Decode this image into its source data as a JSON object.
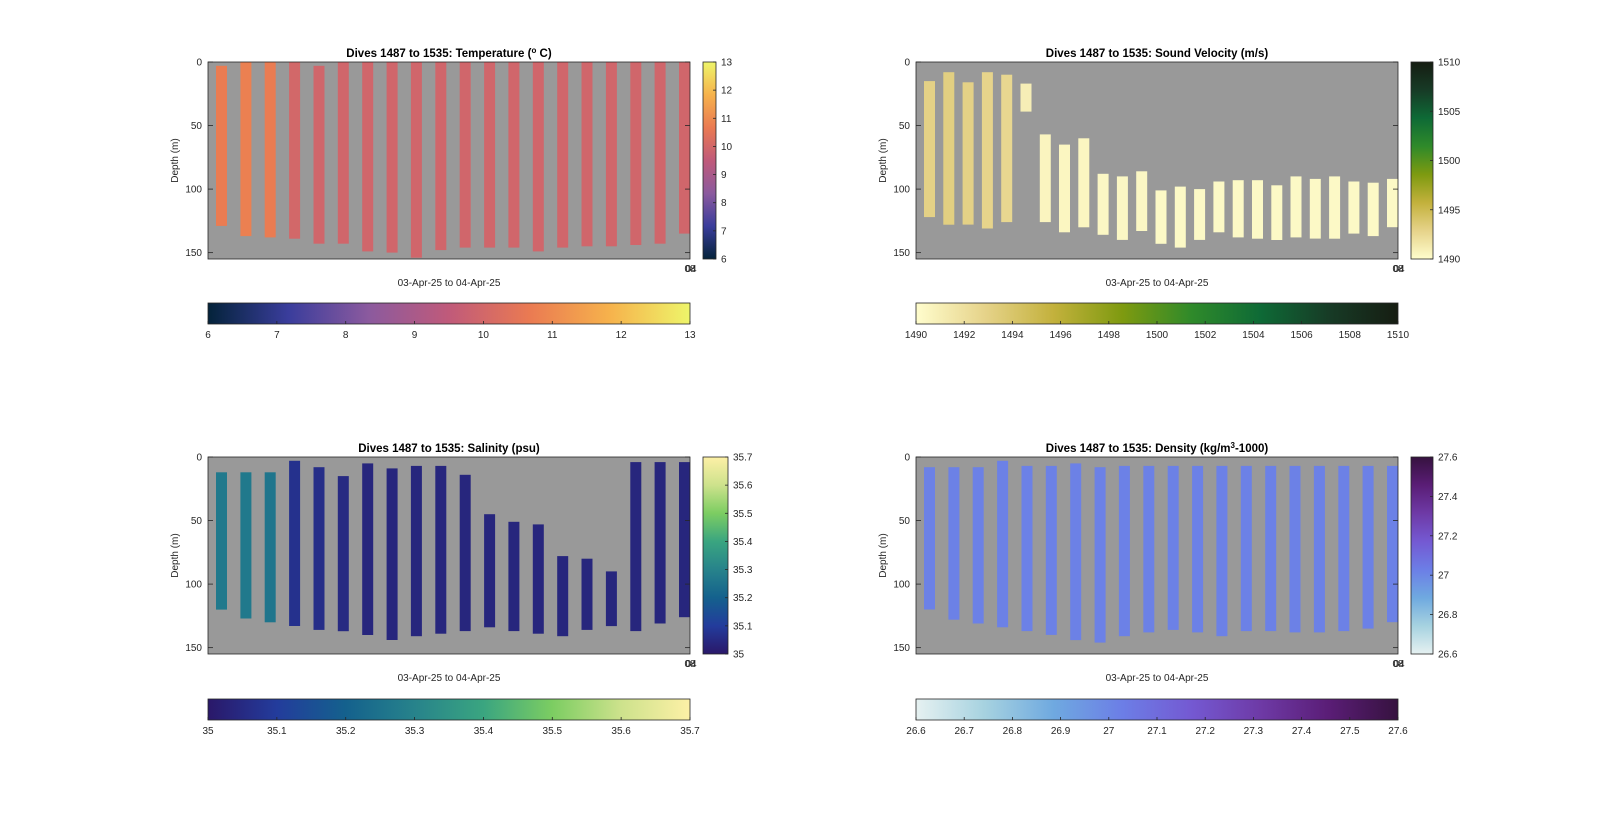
{
  "figure": {
    "background": "#ffffff",
    "axes_background": "#999999"
  },
  "chart_data": [
    {
      "type": "heatmap",
      "title": "Dives 1487 to 1535: Temperature (",
      "title_sup": "o",
      "title_tail": " C)",
      "ylabel": "Depth (m)",
      "xlabel": "03-Apr-25 to 04-Apr-25",
      "ylim": [
        0,
        155
      ],
      "y_inverted": true,
      "yticks": [
        0,
        50,
        100,
        150
      ],
      "xtick_end_label": "08",
      "xtick_end_label_overlap": "04",
      "grid": false,
      "colormap": "thermal",
      "colormap_stops": [
        "#04233a",
        "#3a3d9c",
        "#8b5a9e",
        "#c05a7a",
        "#ea7a52",
        "#f6b24c",
        "#eef56a"
      ],
      "clim": [
        6,
        13
      ],
      "right_colorbar_ticks": [
        6,
        7,
        8,
        9,
        10,
        11,
        12,
        13
      ],
      "bottom_colorbar_ticks": [
        6,
        7,
        8,
        9,
        10,
        11,
        12,
        13
      ],
      "profiles": [
        {
          "top": 3,
          "bottom": 129,
          "value": 10.7
        },
        {
          "top": 0,
          "bottom": 137,
          "value": 10.8
        },
        {
          "top": 0,
          "bottom": 138,
          "value": 10.7
        },
        {
          "top": 0,
          "bottom": 139,
          "value": 10.0
        },
        {
          "top": 3,
          "bottom": 143,
          "value": 9.95
        },
        {
          "top": 0,
          "bottom": 143,
          "value": 9.95
        },
        {
          "top": 0,
          "bottom": 149,
          "value": 9.95
        },
        {
          "top": 0,
          "bottom": 150,
          "value": 9.95
        },
        {
          "top": 0,
          "bottom": 154,
          "value": 9.95
        },
        {
          "top": 0,
          "bottom": 148,
          "value": 9.95
        },
        {
          "top": 0,
          "bottom": 146,
          "value": 9.95
        },
        {
          "top": 0,
          "bottom": 146,
          "value": 9.95
        },
        {
          "top": 0,
          "bottom": 146,
          "value": 9.95
        },
        {
          "top": 0,
          "bottom": 149,
          "value": 9.95
        },
        {
          "top": 0,
          "bottom": 146,
          "value": 9.95
        },
        {
          "top": 0,
          "bottom": 145,
          "value": 9.95
        },
        {
          "top": 0,
          "bottom": 145,
          "value": 9.95
        },
        {
          "top": 0,
          "bottom": 144,
          "value": 9.95
        },
        {
          "top": 0,
          "bottom": 143,
          "value": 9.95
        },
        {
          "top": 0,
          "bottom": 135,
          "value": 9.95
        }
      ]
    },
    {
      "type": "heatmap",
      "title": "Dives 1487 to 1535: Sound Velocity (m/s)",
      "ylabel": "Depth (m)",
      "xlabel": "03-Apr-25 to 04-Apr-25",
      "ylim": [
        0,
        155
      ],
      "y_inverted": true,
      "yticks": [
        0,
        50,
        100,
        150
      ],
      "xtick_end_label": "08",
      "xtick_end_label_overlap": "04",
      "grid": false,
      "colormap": "speed",
      "colormap_stops": [
        "#fffdcd",
        "#e6d38a",
        "#c3b13c",
        "#7e9a10",
        "#2f8a2a",
        "#0e6a36",
        "#173b26",
        "#161d12"
      ],
      "clim": [
        1490,
        1510
      ],
      "right_colorbar_ticks": [
        1490,
        1495,
        1500,
        1505,
        1510
      ],
      "bottom_colorbar_ticks": [
        1490,
        1492,
        1494,
        1496,
        1498,
        1500,
        1502,
        1504,
        1506,
        1508,
        1510
      ],
      "profiles": [
        {
          "top": 15,
          "bottom": 122,
          "value": 1493
        },
        {
          "top": 8,
          "bottom": 128,
          "value": 1493.2
        },
        {
          "top": 16,
          "bottom": 128,
          "value": 1493
        },
        {
          "top": 8,
          "bottom": 131,
          "value": 1492.8
        },
        {
          "top": 10,
          "bottom": 126,
          "value": 1492.6
        },
        {
          "top": 17,
          "bottom": 39,
          "value": 1491
        },
        {
          "top": 57,
          "bottom": 126,
          "value": 1490.6
        },
        {
          "top": 65,
          "bottom": 134,
          "value": 1490.5
        },
        {
          "top": 60,
          "bottom": 130,
          "value": 1490.5
        },
        {
          "top": 88,
          "bottom": 136,
          "value": 1490.4
        },
        {
          "top": 90,
          "bottom": 140,
          "value": 1490.4
        },
        {
          "top": 86,
          "bottom": 133,
          "value": 1490.4
        },
        {
          "top": 101,
          "bottom": 143,
          "value": 1490.3
        },
        {
          "top": 98,
          "bottom": 146,
          "value": 1490.3
        },
        {
          "top": 100,
          "bottom": 140,
          "value": 1490.3
        },
        {
          "top": 94,
          "bottom": 134,
          "value": 1490.3
        },
        {
          "top": 93,
          "bottom": 138,
          "value": 1490.3
        },
        {
          "top": 93,
          "bottom": 139,
          "value": 1490.3
        },
        {
          "top": 97,
          "bottom": 140,
          "value": 1490.3
        },
        {
          "top": 90,
          "bottom": 138,
          "value": 1490.3
        },
        {
          "top": 92,
          "bottom": 139,
          "value": 1490.3
        },
        {
          "top": 90,
          "bottom": 139,
          "value": 1490.3
        },
        {
          "top": 94,
          "bottom": 135,
          "value": 1490.3
        },
        {
          "top": 95,
          "bottom": 137,
          "value": 1490.3
        },
        {
          "top": 92,
          "bottom": 130,
          "value": 1490.3
        }
      ]
    },
    {
      "type": "heatmap",
      "title": "Dives 1487 to 1535: Salinity (psu)",
      "ylabel": "Depth (m)",
      "xlabel": "03-Apr-25 to 04-Apr-25",
      "ylim": [
        0,
        155
      ],
      "y_inverted": true,
      "yticks": [
        0,
        50,
        100,
        150
      ],
      "xtick_end_label": "08",
      "xtick_end_label_overlap": "04",
      "grid": false,
      "colormap": "haline",
      "colormap_stops": [
        "#2a1869",
        "#233c9c",
        "#14618d",
        "#27838b",
        "#3aa580",
        "#7ccd62",
        "#cde28c",
        "#fdf0a6"
      ],
      "clim": [
        35,
        35.7
      ],
      "right_colorbar_ticks": [
        35,
        35.1,
        35.2,
        35.3,
        35.4,
        35.5,
        35.6,
        35.7
      ],
      "bottom_colorbar_ticks": [
        35,
        35.1,
        35.2,
        35.3,
        35.4,
        35.5,
        35.6,
        35.7
      ],
      "profiles": [
        {
          "top": 12,
          "bottom": 120,
          "value": 35.27
        },
        {
          "top": 12,
          "bottom": 127,
          "value": 35.27
        },
        {
          "top": 12,
          "bottom": 130,
          "value": 35.26
        },
        {
          "top": 3,
          "bottom": 133,
          "value": 35.07
        },
        {
          "top": 8,
          "bottom": 136,
          "value": 35.06
        },
        {
          "top": 15,
          "bottom": 137,
          "value": 35.05
        },
        {
          "top": 5,
          "bottom": 140,
          "value": 35.04
        },
        {
          "top": 9,
          "bottom": 144,
          "value": 35.04
        },
        {
          "top": 7,
          "bottom": 141,
          "value": 35.04
        },
        {
          "top": 7,
          "bottom": 139,
          "value": 35.04
        },
        {
          "top": 14,
          "bottom": 137,
          "value": 35.04
        },
        {
          "top": 45,
          "bottom": 134,
          "value": 35.04
        },
        {
          "top": 51,
          "bottom": 137,
          "value": 35.04
        },
        {
          "top": 53,
          "bottom": 139,
          "value": 35.04
        },
        {
          "top": 78,
          "bottom": 141,
          "value": 35.04
        },
        {
          "top": 80,
          "bottom": 136,
          "value": 35.04
        },
        {
          "top": 90,
          "bottom": 133,
          "value": 35.04
        },
        {
          "top": 4,
          "bottom": 137,
          "value": 35.04
        },
        {
          "top": 4,
          "bottom": 131,
          "value": 35.04
        },
        {
          "top": 4,
          "bottom": 126,
          "value": 35.04
        }
      ]
    },
    {
      "type": "heatmap",
      "title": "Dives 1487 to 1535: Density (kg/m",
      "title_sup": "3",
      "title_tail": "-1000)",
      "ylabel": "Depth (m)",
      "xlabel": "03-Apr-25 to 04-Apr-25",
      "ylim": [
        0,
        155
      ],
      "y_inverted": true,
      "yticks": [
        0,
        50,
        100,
        150
      ],
      "xtick_end_label": "08",
      "xtick_end_label_overlap": "04",
      "grid": false,
      "colormap": "dense",
      "colormap_stops": [
        "#e6f1f1",
        "#a6d2e0",
        "#6fa9e0",
        "#6c7ee6",
        "#7459d2",
        "#6e3aa6",
        "#5a1d76",
        "#36123f"
      ],
      "clim": [
        26.6,
        27.6
      ],
      "right_colorbar_ticks": [
        26.6,
        26.8,
        27,
        27.2,
        27.4,
        27.6
      ],
      "bottom_colorbar_ticks": [
        26.6,
        26.7,
        26.8,
        26.9,
        27,
        27.1,
        27.2,
        27.3,
        27.4,
        27.5,
        27.6
      ],
      "profiles": [
        {
          "top": 8,
          "bottom": 120,
          "value": 27.02
        },
        {
          "top": 8,
          "bottom": 128,
          "value": 27.02
        },
        {
          "top": 8,
          "bottom": 131,
          "value": 27.02
        },
        {
          "top": 3,
          "bottom": 134,
          "value": 27.02
        },
        {
          "top": 7,
          "bottom": 137,
          "value": 27.02
        },
        {
          "top": 7,
          "bottom": 140,
          "value": 27.02
        },
        {
          "top": 5,
          "bottom": 144,
          "value": 27.02
        },
        {
          "top": 8,
          "bottom": 146,
          "value": 27.02
        },
        {
          "top": 7,
          "bottom": 141,
          "value": 27.02
        },
        {
          "top": 7,
          "bottom": 138,
          "value": 27.02
        },
        {
          "top": 7,
          "bottom": 136,
          "value": 27.02
        },
        {
          "top": 7,
          "bottom": 138,
          "value": 27.02
        },
        {
          "top": 7,
          "bottom": 141,
          "value": 27.02
        },
        {
          "top": 7,
          "bottom": 137,
          "value": 27.02
        },
        {
          "top": 7,
          "bottom": 137,
          "value": 27.02
        },
        {
          "top": 7,
          "bottom": 138,
          "value": 27.02
        },
        {
          "top": 7,
          "bottom": 138,
          "value": 27.02
        },
        {
          "top": 7,
          "bottom": 137,
          "value": 27.02
        },
        {
          "top": 7,
          "bottom": 135,
          "value": 27.02
        },
        {
          "top": 7,
          "bottom": 130,
          "value": 27.02
        }
      ]
    }
  ]
}
